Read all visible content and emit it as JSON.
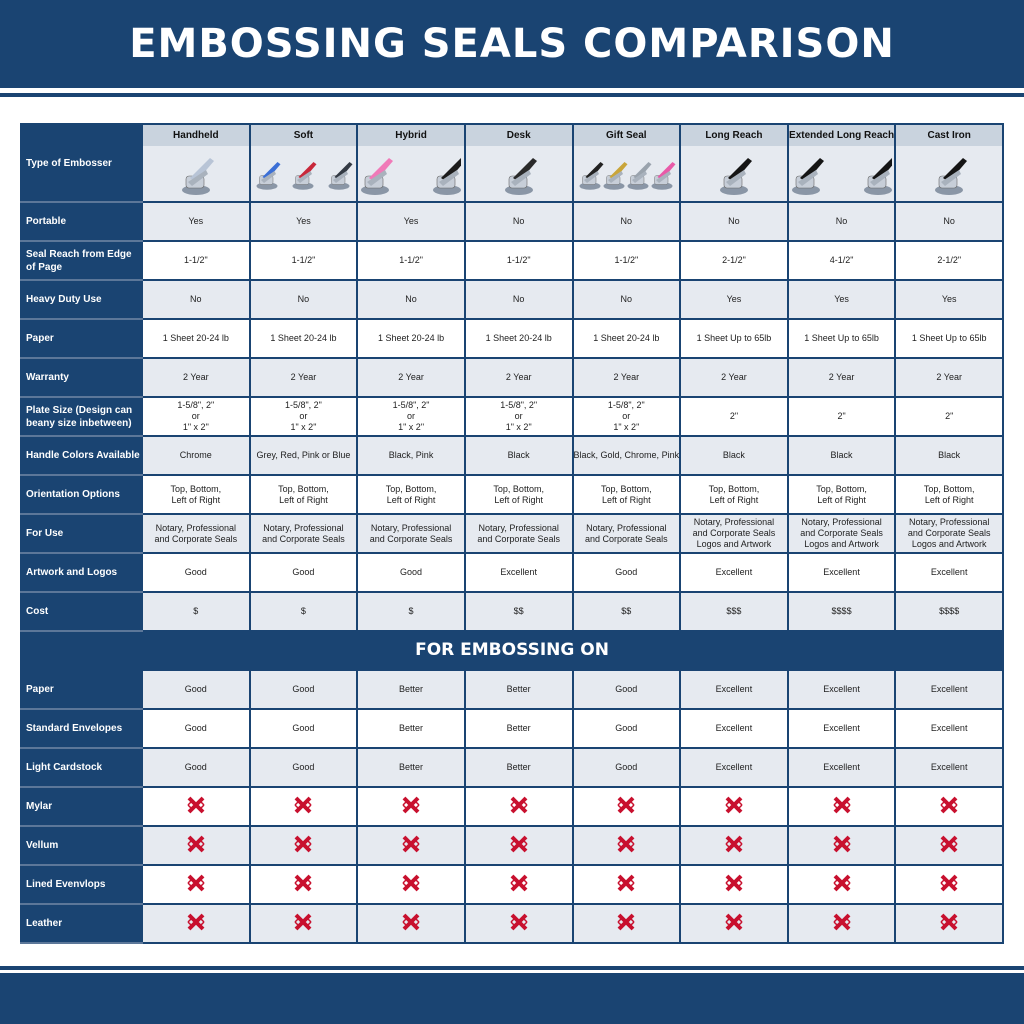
{
  "title": "EMBOSSING SEALS COMPARISON",
  "colors": {
    "brand": "#1a4472",
    "row_alt": "#e6eaf0",
    "header_cell": "#c9d3de",
    "cross": "#c8102e"
  },
  "columns": [
    "Handheld",
    "Soft",
    "Hybrid",
    "Desk",
    "Gift Seal",
    "Long Reach",
    "Extended Long Reach",
    "Cast Iron"
  ],
  "type_label": "Type of Embosser",
  "images": [
    {
      "icon": "handheld-embosser-image",
      "colors": [
        "#b8c4d6"
      ]
    },
    {
      "icon": "soft-embosser-image",
      "colors": [
        "#3b6fd6",
        "#c8283a",
        "#333a44"
      ]
    },
    {
      "icon": "hybrid-embosser-image",
      "colors": [
        "#f07ab8",
        "#1c1c1c"
      ]
    },
    {
      "icon": "desk-embosser-image",
      "colors": [
        "#2a2a2a"
      ]
    },
    {
      "icon": "gift-seal-embosser-image",
      "colors": [
        "#222",
        "#c9a53a",
        "#9aa3ad",
        "#e85aa8"
      ]
    },
    {
      "icon": "long-reach-embosser-image",
      "colors": [
        "#151515"
      ]
    },
    {
      "icon": "extended-long-reach-embosser-image",
      "colors": [
        "#151515",
        "#151515"
      ]
    },
    {
      "icon": "cast-iron-embosser-image",
      "colors": [
        "#151515"
      ]
    }
  ],
  "rows": [
    {
      "label": "Portable",
      "values": [
        "Yes",
        "Yes",
        "Yes",
        "No",
        "No",
        "No",
        "No",
        "No"
      ]
    },
    {
      "label": "Seal Reach from Edge of Page",
      "values": [
        "1-1/2\"",
        "1-1/2\"",
        "1-1/2\"",
        "1-1/2\"",
        "1-1/2\"",
        "2-1/2\"",
        "4-1/2\"",
        "2-1/2\""
      ]
    },
    {
      "label": "Heavy Duty Use",
      "values": [
        "No",
        "No",
        "No",
        "No",
        "No",
        "Yes",
        "Yes",
        "Yes"
      ]
    },
    {
      "label": "Paper",
      "values": [
        "1 Sheet 20-24 lb",
        "1 Sheet 20-24 lb",
        "1 Sheet 20-24 lb",
        "1 Sheet 20-24 lb",
        "1 Sheet 20-24 lb",
        "1 Sheet Up to 65lb",
        "1 Sheet Up to 65lb",
        "1 Sheet Up to 65lb"
      ]
    },
    {
      "label": "Warranty",
      "values": [
        "2 Year",
        "2 Year",
        "2 Year",
        "2 Year",
        "2 Year",
        "2 Year",
        "2 Year",
        "2 Year"
      ]
    },
    {
      "label": "Plate Size (Design can beany size inbetween)",
      "values": [
        "1-5/8\", 2\"\nor\n1\" x 2\"",
        "1-5/8\", 2\"\nor\n1\" x 2\"",
        "1-5/8\", 2\"\nor\n1\" x 2\"",
        "1-5/8\", 2\"\nor\n1\" x 2\"",
        "1-5/8\", 2\"\nor\n1\" x 2\"",
        "2\"",
        "2\"",
        "2\""
      ]
    },
    {
      "label": "Handle Colors Available",
      "values": [
        "Chrome",
        "Grey, Red, Pink or Blue",
        "Black, Pink",
        "Black",
        "Black, Gold, Chrome, Pink",
        "Black",
        "Black",
        "Black"
      ]
    },
    {
      "label": "Orientation Options",
      "values": [
        "Top, Bottom,\nLeft of Right",
        "Top, Bottom,\nLeft of Right",
        "Top, Bottom,\nLeft of Right",
        "Top, Bottom,\nLeft of Right",
        "Top, Bottom,\nLeft of Right",
        "Top, Bottom,\nLeft of Right",
        "Top, Bottom,\nLeft of Right",
        "Top, Bottom,\nLeft of Right"
      ]
    },
    {
      "label": "For Use",
      "values": [
        "Notary, Professional\nand Corporate Seals",
        "Notary, Professional\nand Corporate Seals",
        "Notary, Professional\nand Corporate Seals",
        "Notary, Professional\nand Corporate Seals",
        "Notary, Professional\nand Corporate Seals",
        "Notary, Professional\nand Corporate Seals\nLogos and Artwork",
        "Notary, Professional\nand Corporate Seals\nLogos and Artwork",
        "Notary, Professional\nand Corporate Seals\nLogos and Artwork"
      ]
    },
    {
      "label": "Artwork and Logos",
      "values": [
        "Good",
        "Good",
        "Good",
        "Excellent",
        "Good",
        "Excellent",
        "Excellent",
        "Excellent"
      ]
    },
    {
      "label": "Cost",
      "values": [
        "$",
        "$",
        "$",
        "$$",
        "$$",
        "$$$",
        "$$$$",
        "$$$$"
      ]
    }
  ],
  "section_banner": "FOR EMBOSSING ON",
  "embossing_rows": [
    {
      "label": "Paper",
      "values": [
        "Good",
        "Good",
        "Better",
        "Better",
        "Good",
        "Excellent",
        "Excellent",
        "Excellent"
      ]
    },
    {
      "label": "Standard Envelopes",
      "values": [
        "Good",
        "Good",
        "Better",
        "Better",
        "Good",
        "Excellent",
        "Excellent",
        "Excellent"
      ]
    },
    {
      "label": "Light Cardstock",
      "values": [
        "Good",
        "Good",
        "Better",
        "Better",
        "Good",
        "Excellent",
        "Excellent",
        "Excellent"
      ]
    },
    {
      "label": "Mylar",
      "values": [
        "x",
        "x",
        "x",
        "x",
        "x",
        "x",
        "x",
        "x"
      ]
    },
    {
      "label": "Vellum",
      "values": [
        "x",
        "x",
        "x",
        "x",
        "x",
        "x",
        "x",
        "x"
      ]
    },
    {
      "label": "Lined Evenvlops",
      "values": [
        "x",
        "x",
        "x",
        "x",
        "x",
        "x",
        "x",
        "x"
      ]
    },
    {
      "label": "Leather",
      "values": [
        "x",
        "x",
        "x",
        "x",
        "x",
        "x",
        "x",
        "x"
      ]
    }
  ]
}
